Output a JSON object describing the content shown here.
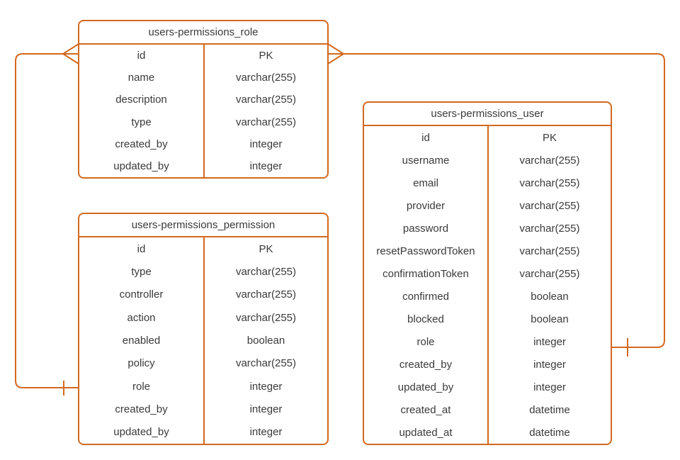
{
  "diagram": {
    "type": "entity-relationship",
    "colors": {
      "accent": "#d2691e",
      "text": "#3a3a3a",
      "background": "#ffffff"
    },
    "entities": [
      {
        "id": "role",
        "title": "users-permissions_role",
        "fields": [
          {
            "name": "id",
            "type": "PK"
          },
          {
            "name": "name",
            "type": "varchar(255)"
          },
          {
            "name": "description",
            "type": "varchar(255)"
          },
          {
            "name": "type",
            "type": "varchar(255)"
          },
          {
            "name": "created_by",
            "type": "integer"
          },
          {
            "name": "updated_by",
            "type": "integer"
          }
        ]
      },
      {
        "id": "permission",
        "title": "users-permissions_permission",
        "fields": [
          {
            "name": "id",
            "type": "PK"
          },
          {
            "name": "type",
            "type": "varchar(255)"
          },
          {
            "name": "controller",
            "type": "varchar(255)"
          },
          {
            "name": "action",
            "type": "varchar(255)"
          },
          {
            "name": "enabled",
            "type": "boolean"
          },
          {
            "name": "policy",
            "type": "varchar(255)"
          },
          {
            "name": "role",
            "type": "integer"
          },
          {
            "name": "created_by",
            "type": "integer"
          },
          {
            "name": "updated_by",
            "type": "integer"
          }
        ]
      },
      {
        "id": "user",
        "title": "users-permissions_user",
        "fields": [
          {
            "name": "id",
            "type": "PK"
          },
          {
            "name": "username",
            "type": "varchar(255)"
          },
          {
            "name": "email",
            "type": "varchar(255)"
          },
          {
            "name": "provider",
            "type": "varchar(255)"
          },
          {
            "name": "password",
            "type": "varchar(255)"
          },
          {
            "name": "resetPasswordToken",
            "type": "varchar(255)"
          },
          {
            "name": "confirmationToken",
            "type": "varchar(255)"
          },
          {
            "name": "confirmed",
            "type": "boolean"
          },
          {
            "name": "blocked",
            "type": "boolean"
          },
          {
            "name": "role",
            "type": "integer"
          },
          {
            "name": "created_by",
            "type": "integer"
          },
          {
            "name": "updated_by",
            "type": "integer"
          },
          {
            "name": "created_at",
            "type": "datetime"
          },
          {
            "name": "updated_at",
            "type": "datetime"
          }
        ]
      }
    ],
    "relationships": [
      {
        "from_entity": "users-permissions_role",
        "from_field": "id",
        "from_cardinality": "many (crow's foot)",
        "to_entity": "users-permissions_permission",
        "to_field": "role",
        "to_cardinality": "one (tick)"
      },
      {
        "from_entity": "users-permissions_role",
        "from_field": "id",
        "from_cardinality": "many (crow's foot)",
        "to_entity": "users-permissions_user",
        "to_field": "role",
        "to_cardinality": "one (tick)"
      }
    ]
  }
}
